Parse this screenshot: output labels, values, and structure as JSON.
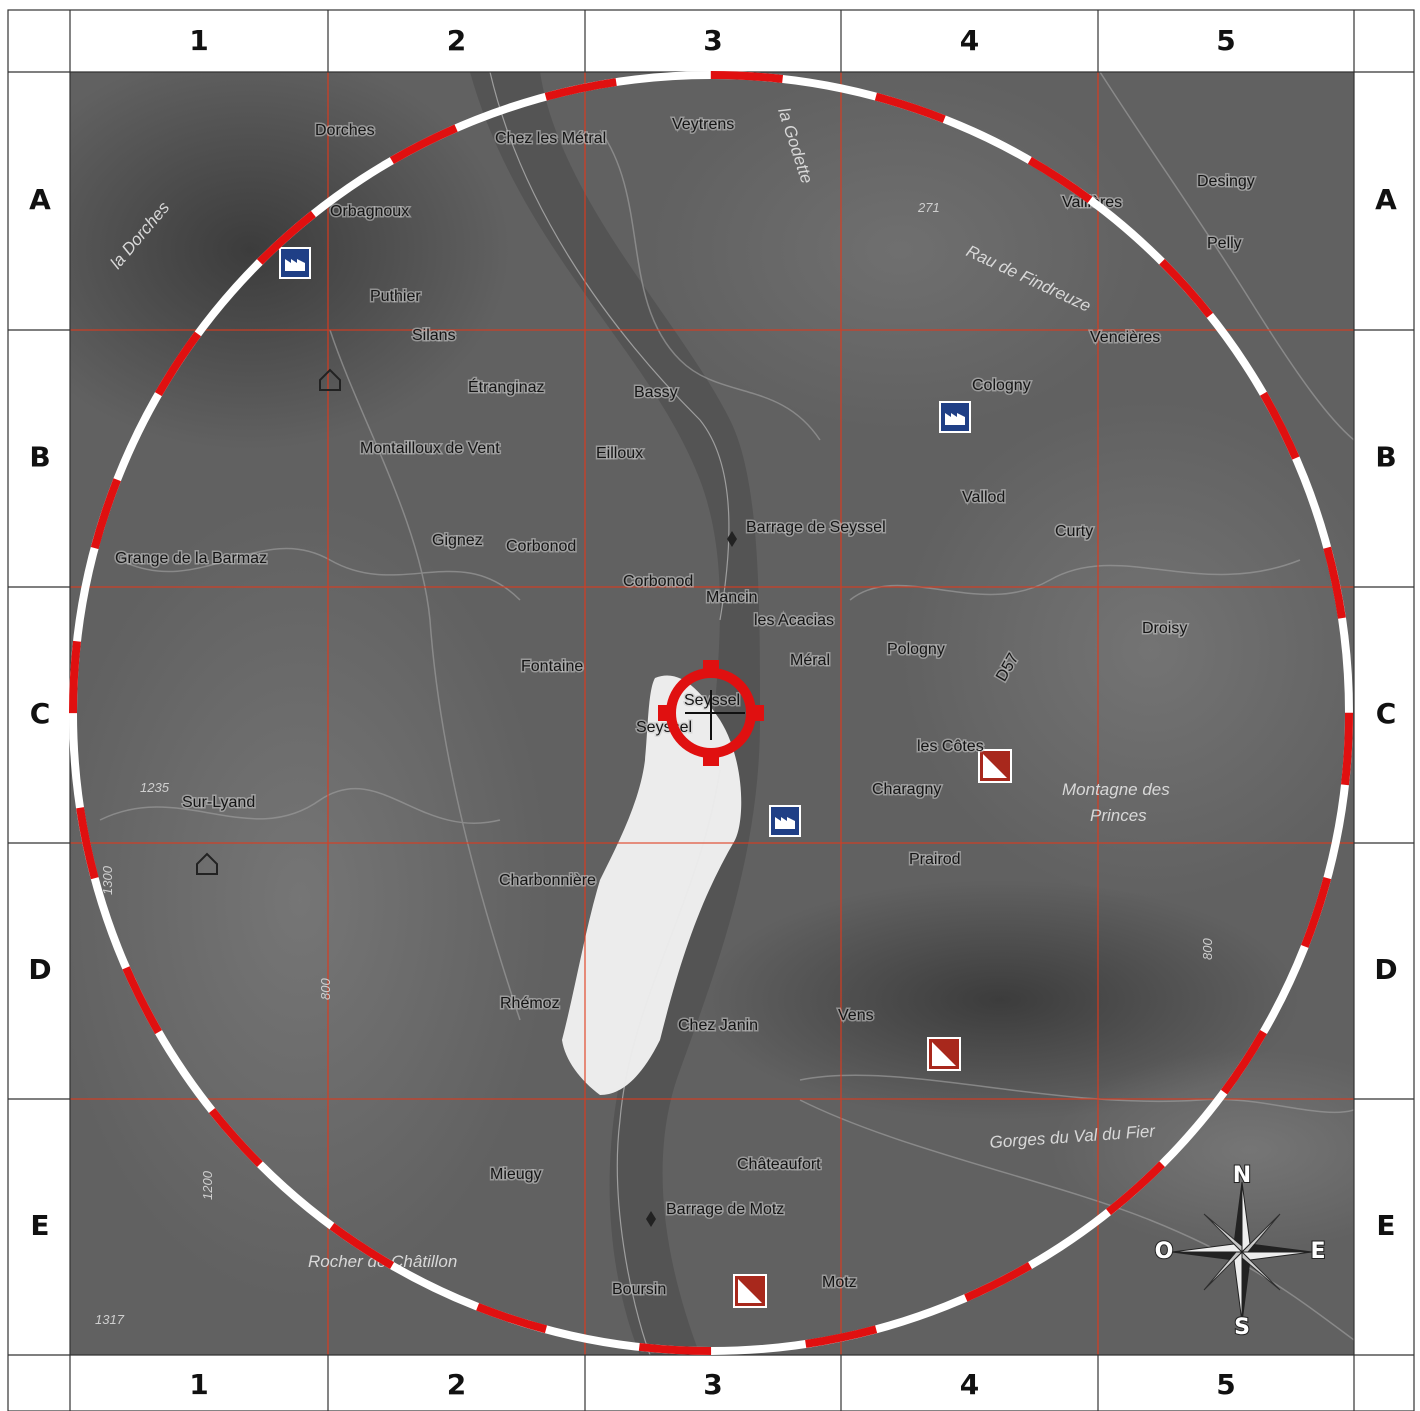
{
  "grid": {
    "columns": [
      "1",
      "2",
      "3",
      "4",
      "5"
    ],
    "rows": [
      "A",
      "B",
      "C",
      "D",
      "E"
    ]
  },
  "places": [
    "Dorches",
    "Chez les Métral",
    "Veytrens",
    "Orbagnoux",
    "Desingy",
    "Vallières",
    "Pelly",
    "Puthier",
    "Silans",
    "Vencières",
    "Étranginaz",
    "Bassy",
    "Cologny",
    "Montailloux de Vent",
    "Eilloux",
    "Vallod",
    "Barrage de Seyssel",
    "Curty",
    "Gignez",
    "Corbonod",
    "Grange de la Barmaz",
    "Corbonod",
    "Mancin",
    "les Acacias",
    "Droisy",
    "Pologny",
    "Méral",
    "Fontaine",
    "Seyssel",
    "Seyssel",
    "les Côtes",
    "Charagny",
    "Sur-Lyand",
    "Prairod",
    "Charbonnière",
    "Rhémoz",
    "Vens",
    "Chez Janin",
    "Châteaufort",
    "Mieugy",
    "Barrage de Motz",
    "Boursin",
    "Motz",
    "D57"
  ],
  "water": [
    "la Godette",
    "Rau de Findreuze",
    "la Dorches",
    "Montagne des",
    "Princes",
    "Gorges du Val du Fier",
    "Rocher de Châtillon"
  ],
  "elevations": [
    "271",
    "1235",
    "1300",
    "1200",
    "1317",
    "800",
    "800"
  ],
  "compass": {
    "north": "N",
    "east": "E",
    "south": "S",
    "west": "O"
  }
}
